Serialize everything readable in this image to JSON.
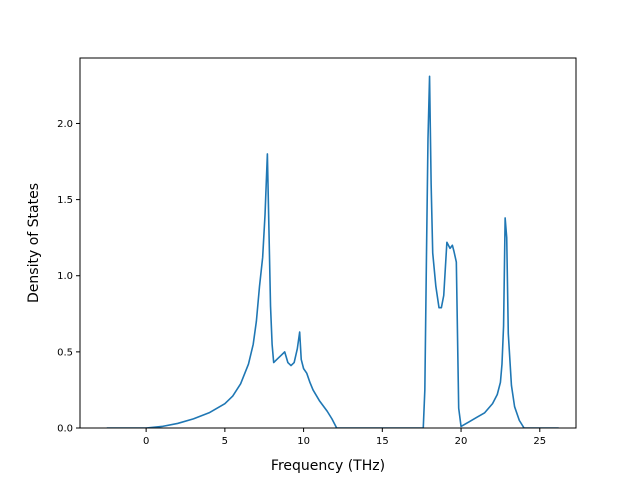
{
  "chart_data": {
    "type": "line",
    "title": "",
    "xlabel": "Frequency (THz)",
    "ylabel": "Density of States",
    "xlim": [
      -4.2,
      27.3
    ],
    "ylim": [
      0.0,
      2.43
    ],
    "xticks": [
      0,
      5,
      10,
      15,
      20,
      25
    ],
    "xtick_labels": [
      "0",
      "5",
      "10",
      "15",
      "20",
      "25"
    ],
    "yticks": [
      0.0,
      0.5,
      1.0,
      1.5,
      2.0
    ],
    "ytick_labels": [
      "0.0",
      "0.5",
      "1.0",
      "1.5",
      "2.0"
    ],
    "grid": false,
    "legend": "none",
    "series": [
      {
        "color": "#1f77b4",
        "x": [
          -2.5,
          0.0,
          1.0,
          2.0,
          3.0,
          4.0,
          5.0,
          5.5,
          6.0,
          6.5,
          6.8,
          7.0,
          7.2,
          7.4,
          7.55,
          7.7,
          7.8,
          7.9,
          8.0,
          8.1,
          8.3,
          8.6,
          8.8,
          9.0,
          9.2,
          9.4,
          9.6,
          9.75,
          9.85,
          10.0,
          10.2,
          10.4,
          10.6,
          11.0,
          11.5,
          11.8,
          12.1,
          12.5,
          14.0,
          16.0,
          17.6,
          17.7,
          17.8,
          17.9,
          18.0,
          18.1,
          18.2,
          18.4,
          18.6,
          18.75,
          18.9,
          19.1,
          19.3,
          19.45,
          19.55,
          19.7,
          19.85,
          20.0,
          20.5,
          21.0,
          21.5,
          22.0,
          22.3,
          22.5,
          22.6,
          22.7,
          22.8,
          22.9,
          23.0,
          23.2,
          23.4,
          23.7,
          24.0,
          24.5,
          25.5,
          26.2
        ],
        "y": [
          0.0,
          0.0,
          0.01,
          0.03,
          0.06,
          0.1,
          0.16,
          0.21,
          0.29,
          0.42,
          0.55,
          0.7,
          0.93,
          1.12,
          1.4,
          1.8,
          1.3,
          0.8,
          0.55,
          0.43,
          0.45,
          0.48,
          0.5,
          0.43,
          0.41,
          0.43,
          0.52,
          0.63,
          0.45,
          0.39,
          0.36,
          0.3,
          0.25,
          0.18,
          0.11,
          0.06,
          0.0,
          0.0,
          0.0,
          0.0,
          0.0,
          0.25,
          1.1,
          1.9,
          2.31,
          1.6,
          1.15,
          0.93,
          0.79,
          0.79,
          0.87,
          1.22,
          1.18,
          1.2,
          1.16,
          1.09,
          0.13,
          0.01,
          0.04,
          0.07,
          0.1,
          0.16,
          0.22,
          0.3,
          0.42,
          0.67,
          1.38,
          1.25,
          0.62,
          0.28,
          0.14,
          0.05,
          0.0,
          0.0,
          0.0,
          0.0
        ]
      }
    ]
  }
}
